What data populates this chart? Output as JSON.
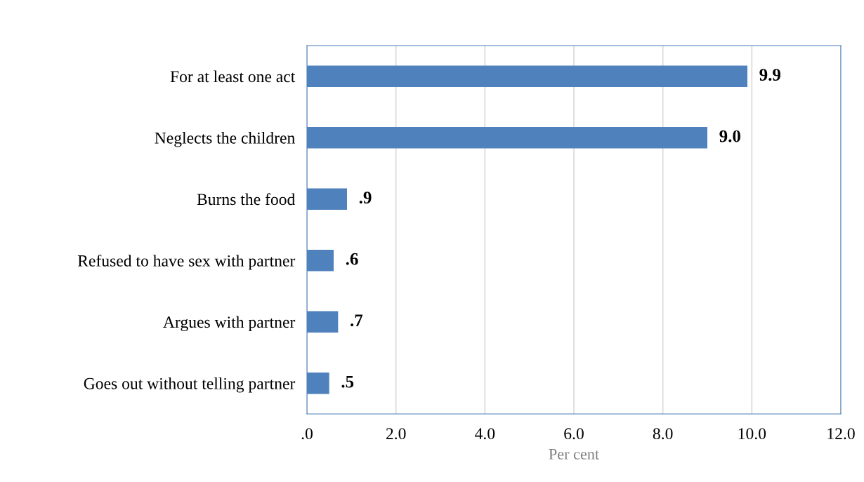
{
  "chart_data": {
    "type": "bar",
    "orientation": "horizontal",
    "xlabel": "Per cent",
    "categories": [
      "For at least one act",
      "Neglects the children",
      "Burns the food",
      "Refused to have sex with partner",
      "Argues with partner",
      "Goes out without telling partner"
    ],
    "values": [
      9.9,
      9.0,
      0.9,
      0.6,
      0.7,
      0.5
    ],
    "value_labels": [
      "9.9",
      "9.0",
      ".9",
      ".6",
      ".7",
      ".5"
    ],
    "color": "#4f81bd",
    "xlim": [
      0,
      12
    ],
    "xticks": [
      {
        "value": 0,
        "label": ".0"
      },
      {
        "value": 2,
        "label": "2.0"
      },
      {
        "value": 4,
        "label": "4.0"
      },
      {
        "value": 6,
        "label": "6.0"
      },
      {
        "value": 8,
        "label": "8.0"
      },
      {
        "value": 10,
        "label": "10.0"
      },
      {
        "value": 12,
        "label": "12.0"
      }
    ],
    "grid": "x",
    "legend": false
  }
}
